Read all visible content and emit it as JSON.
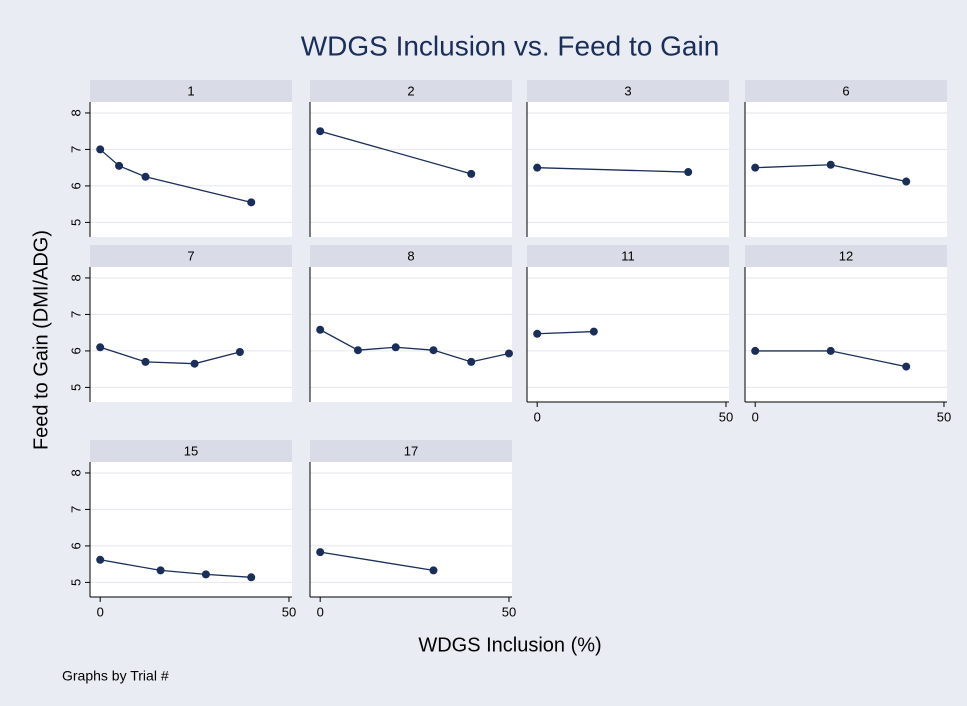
{
  "chart_data": {
    "type": "line",
    "title": "WDGS Inclusion vs. Feed to Gain",
    "xlabel": "WDGS Inclusion (%)",
    "ylabel": "Feed to Gain (DMI/ADG)",
    "note": "Graphs by Trial #",
    "color": "#1a2e5a",
    "grid": true,
    "xlim": [
      -2.7,
      50.8
    ],
    "xticks": [
      0,
      50
    ],
    "ylim": [
      4.6,
      8.3
    ],
    "yticks": [
      5,
      6,
      7,
      8
    ],
    "panels": [
      {
        "name": "1",
        "x": [
          0,
          5,
          12,
          40
        ],
        "values": [
          7.0,
          6.55,
          6.25,
          5.55
        ]
      },
      {
        "name": "2",
        "x": [
          0,
          40
        ],
        "values": [
          7.5,
          6.33
        ]
      },
      {
        "name": "3",
        "x": [
          0,
          40
        ],
        "values": [
          6.5,
          6.38
        ]
      },
      {
        "name": "6",
        "x": [
          0,
          20,
          40
        ],
        "values": [
          6.5,
          6.58,
          6.12
        ]
      },
      {
        "name": "7",
        "x": [
          0,
          12,
          25,
          37
        ],
        "values": [
          6.1,
          5.7,
          5.65,
          5.97
        ]
      },
      {
        "name": "8",
        "x": [
          0,
          10,
          20,
          30,
          40,
          50
        ],
        "values": [
          6.58,
          6.02,
          6.1,
          6.02,
          5.7,
          5.93
        ]
      },
      {
        "name": "11",
        "x": [
          0,
          15
        ],
        "values": [
          6.47,
          6.53
        ]
      },
      {
        "name": "12",
        "x": [
          0,
          20,
          40
        ],
        "values": [
          6.0,
          6.0,
          5.57
        ]
      },
      {
        "name": "15",
        "x": [
          0,
          16,
          28,
          40
        ],
        "values": [
          5.62,
          5.33,
          5.22,
          5.14
        ]
      },
      {
        "name": "17",
        "x": [
          0,
          30
        ],
        "values": [
          5.83,
          5.33
        ]
      }
    ]
  }
}
